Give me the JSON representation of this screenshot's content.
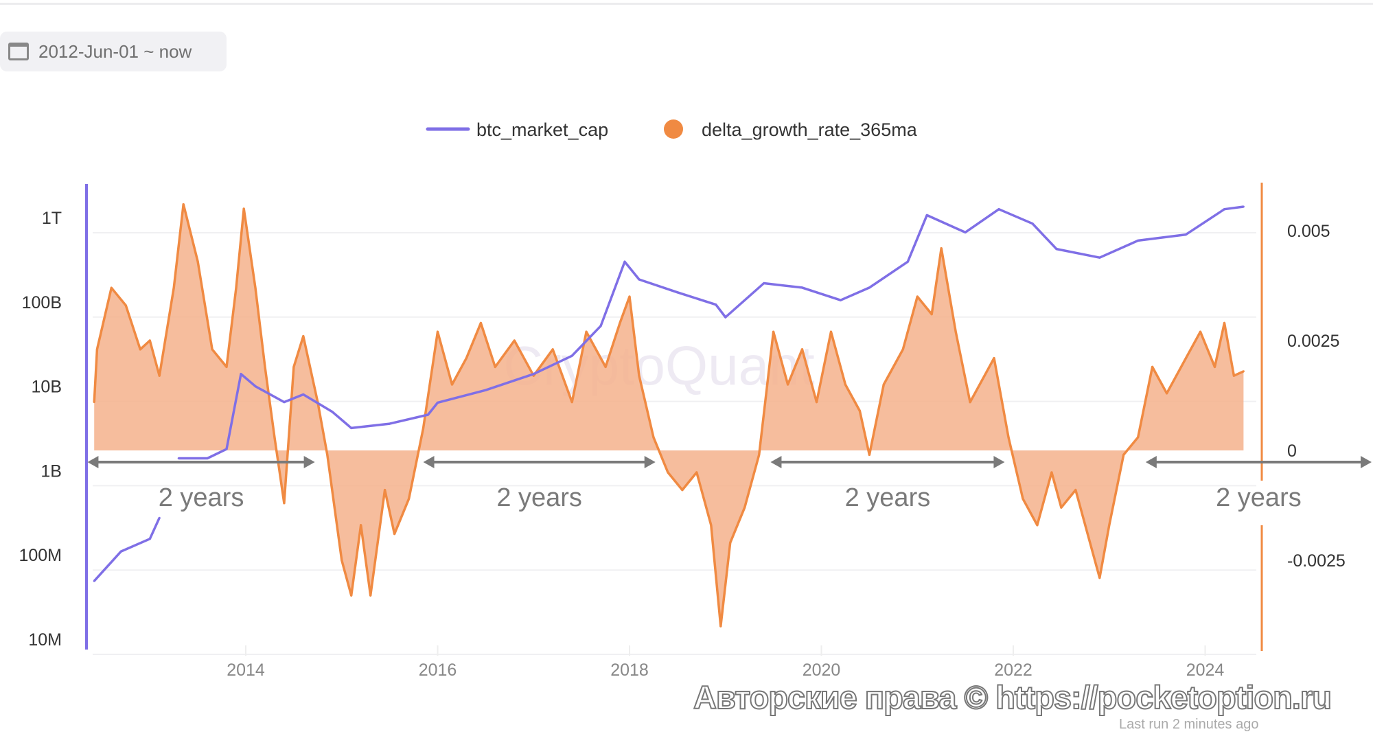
{
  "date_range": {
    "icon": "calendar-icon",
    "label": "2012-Jun-01 ~ now"
  },
  "watermark_brand": "CryptoQuant",
  "copyright": "Авторские права © https://pocketoption.ru",
  "last_run": "Last run 2 minutes ago",
  "colors": {
    "btc": "#7f6fe6",
    "growth_line": "#f08a42",
    "growth_fill": "#f4b28c",
    "arrow": "#7a7a7a"
  },
  "chart_data": {
    "type": "line",
    "legend": {
      "placement": "top-center",
      "entries": [
        "btc_market_cap",
        "delta_growth_rate_365ma"
      ]
    },
    "x_ticks": [
      "2014",
      "2016",
      "2018",
      "2020",
      "2022",
      "2024"
    ],
    "x_range": [
      2012.42,
      2024.4
    ],
    "y_left": {
      "scale": "log",
      "range": [
        10000000,
        1000000000000
      ],
      "ticks": [
        {
          "label": "1T",
          "value": 1000000000000
        },
        {
          "label": "100B",
          "value": 100000000000
        },
        {
          "label": "10B",
          "value": 10000000000
        },
        {
          "label": "1B",
          "value": 1000000000
        },
        {
          "label": "100M",
          "value": 100000000
        },
        {
          "label": "10M",
          "value": 10000000
        }
      ]
    },
    "y_right": {
      "scale": "linear",
      "ticks": [
        {
          "label": "0.005",
          "value": 0.005
        },
        {
          "label": "0.0025",
          "value": 0.0025
        },
        {
          "label": "0",
          "value": 0
        },
        {
          "label": "-0.0025",
          "value": -0.0025
        }
      ]
    },
    "grid": true,
    "series": [
      {
        "name": "btc_market_cap",
        "axis": "left",
        "type": "line",
        "points": [
          [
            2012.42,
            49000000
          ],
          [
            2012.7,
            110000000
          ],
          [
            2013.0,
            155000000
          ],
          [
            2013.1,
            275000000
          ],
          [
            2013.2,
            null
          ],
          [
            2013.3,
            1400000000
          ],
          [
            2013.6,
            1400000000
          ],
          [
            2013.8,
            1800000000
          ],
          [
            2013.95,
            14000000000
          ],
          [
            2014.1,
            10000000000
          ],
          [
            2014.4,
            6500000000
          ],
          [
            2014.6,
            8000000000
          ],
          [
            2014.9,
            5000000000
          ],
          [
            2015.1,
            3200000000
          ],
          [
            2015.5,
            3600000000
          ],
          [
            2015.9,
            4600000000
          ],
          [
            2016.0,
            6400000000
          ],
          [
            2016.5,
            9000000000
          ],
          [
            2017.0,
            14000000000
          ],
          [
            2017.4,
            23000000000
          ],
          [
            2017.7,
            52000000000
          ],
          [
            2017.95,
            300000000000
          ],
          [
            2018.1,
            185000000000
          ],
          [
            2018.5,
            130000000000
          ],
          [
            2018.9,
            93000000000
          ],
          [
            2019.0,
            66000000000
          ],
          [
            2019.4,
            167000000000
          ],
          [
            2019.8,
            148000000000
          ],
          [
            2020.2,
            105000000000
          ],
          [
            2020.5,
            148000000000
          ],
          [
            2020.9,
            300000000000
          ],
          [
            2021.1,
            1070000000000
          ],
          [
            2021.5,
            670000000000
          ],
          [
            2021.85,
            1260000000000
          ],
          [
            2022.2,
            850000000000
          ],
          [
            2022.45,
            425000000000
          ],
          [
            2022.9,
            336000000000
          ],
          [
            2023.3,
            535000000000
          ],
          [
            2023.8,
            630000000000
          ],
          [
            2024.2,
            1260000000000
          ],
          [
            2024.4,
            1350000000000
          ]
        ]
      },
      {
        "name": "delta_growth_rate_365ma",
        "axis": "right",
        "type": "area",
        "points": [
          [
            2012.42,
            0.0011
          ],
          [
            2012.45,
            0.0023
          ],
          [
            2012.6,
            0.0037
          ],
          [
            2012.75,
            0.0033
          ],
          [
            2012.9,
            0.0023
          ],
          [
            2013.0,
            0.0025
          ],
          [
            2013.1,
            0.0017
          ],
          [
            2013.25,
            0.0037
          ],
          [
            2013.35,
            0.0056
          ],
          [
            2013.5,
            0.0043
          ],
          [
            2013.65,
            0.0023
          ],
          [
            2013.8,
            0.0019
          ],
          [
            2013.9,
            0.0037
          ],
          [
            2013.98,
            0.0055
          ],
          [
            2014.1,
            0.0037
          ],
          [
            2014.2,
            0.0019
          ],
          [
            2014.3,
            0.0003
          ],
          [
            2014.4,
            -0.0012
          ],
          [
            2014.5,
            0.0019
          ],
          [
            2014.6,
            0.0026
          ],
          [
            2014.75,
            0.0011
          ],
          [
            2014.85,
            -0.0001
          ],
          [
            2015.0,
            -0.0025
          ],
          [
            2015.1,
            -0.0033
          ],
          [
            2015.2,
            -0.0017
          ],
          [
            2015.3,
            -0.0033
          ],
          [
            2015.45,
            -0.0009
          ],
          [
            2015.55,
            -0.0019
          ],
          [
            2015.7,
            -0.0011
          ],
          [
            2015.85,
            0.0005
          ],
          [
            2016.0,
            0.0027
          ],
          [
            2016.15,
            0.0015
          ],
          [
            2016.3,
            0.0021
          ],
          [
            2016.45,
            0.0029
          ],
          [
            2016.6,
            0.0019
          ],
          [
            2016.8,
            0.0025
          ],
          [
            2017.0,
            0.0017
          ],
          [
            2017.2,
            0.0023
          ],
          [
            2017.4,
            0.0011
          ],
          [
            2017.55,
            0.0027
          ],
          [
            2017.75,
            0.0019
          ],
          [
            2017.9,
            0.0029
          ],
          [
            2018.0,
            0.0035
          ],
          [
            2018.1,
            0.0017
          ],
          [
            2018.25,
            0.0003
          ],
          [
            2018.4,
            -0.0005
          ],
          [
            2018.55,
            -0.0009
          ],
          [
            2018.7,
            -0.0005
          ],
          [
            2018.85,
            -0.0017
          ],
          [
            2018.95,
            -0.004
          ],
          [
            2019.05,
            -0.0021
          ],
          [
            2019.2,
            -0.0013
          ],
          [
            2019.35,
            -0.0001
          ],
          [
            2019.5,
            0.0027
          ],
          [
            2019.65,
            0.0015
          ],
          [
            2019.8,
            0.0023
          ],
          [
            2019.95,
            0.0011
          ],
          [
            2020.1,
            0.0027
          ],
          [
            2020.25,
            0.0015
          ],
          [
            2020.4,
            0.0009
          ],
          [
            2020.5,
            -0.0001
          ],
          [
            2020.65,
            0.0015
          ],
          [
            2020.85,
            0.0023
          ],
          [
            2021.0,
            0.0035
          ],
          [
            2021.15,
            0.0031
          ],
          [
            2021.25,
            0.0046
          ],
          [
            2021.4,
            0.0027
          ],
          [
            2021.55,
            0.0011
          ],
          [
            2021.7,
            0.0017
          ],
          [
            2021.8,
            0.0021
          ],
          [
            2021.95,
            0.0003
          ],
          [
            2022.1,
            -0.0011
          ],
          [
            2022.25,
            -0.0017
          ],
          [
            2022.4,
            -0.0005
          ],
          [
            2022.5,
            -0.0013
          ],
          [
            2022.65,
            -0.0009
          ],
          [
            2022.8,
            -0.0021
          ],
          [
            2022.9,
            -0.0029
          ],
          [
            2023.0,
            -0.0017
          ],
          [
            2023.15,
            -0.0001
          ],
          [
            2023.3,
            0.0003
          ],
          [
            2023.45,
            0.0019
          ],
          [
            2023.6,
            0.0013
          ],
          [
            2023.8,
            0.0021
          ],
          [
            2023.95,
            0.0027
          ],
          [
            2024.1,
            0.0019
          ],
          [
            2024.2,
            0.0029
          ],
          [
            2024.3,
            0.0017
          ],
          [
            2024.4,
            0.0018
          ]
        ]
      }
    ],
    "annotations": [
      {
        "label": "2 years",
        "from": 2012.35,
        "to": 2014.72
      },
      {
        "label": "2 years",
        "from": 2015.85,
        "to": 2018.27
      },
      {
        "label": "2 years",
        "from": 2019.47,
        "to": 2021.91
      },
      {
        "label": "2 years",
        "from": 2023.38,
        "to": 2025.75
      }
    ]
  }
}
